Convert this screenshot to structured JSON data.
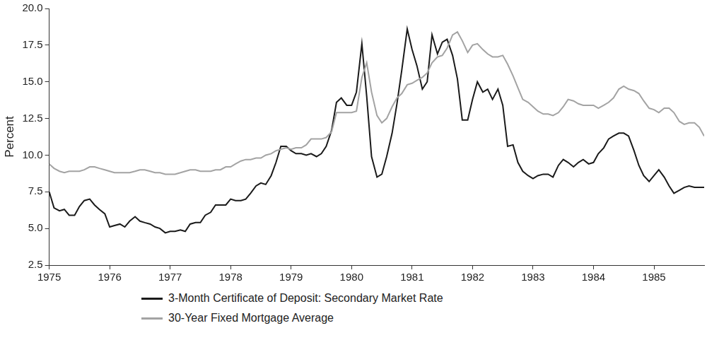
{
  "chart_data": {
    "type": "line",
    "y_label": "Percent",
    "x": [
      1975.0,
      1975.08,
      1975.17,
      1975.25,
      1975.33,
      1975.42,
      1975.5,
      1975.58,
      1975.67,
      1975.75,
      1975.83,
      1975.92,
      1976.0,
      1976.08,
      1976.17,
      1976.25,
      1976.33,
      1976.42,
      1976.5,
      1976.58,
      1976.67,
      1976.75,
      1976.83,
      1976.92,
      1977.0,
      1977.08,
      1977.17,
      1977.25,
      1977.33,
      1977.42,
      1977.5,
      1977.58,
      1977.67,
      1977.75,
      1977.83,
      1977.92,
      1978.0,
      1978.08,
      1978.17,
      1978.25,
      1978.33,
      1978.42,
      1978.5,
      1978.58,
      1978.67,
      1978.75,
      1978.83,
      1978.92,
      1979.0,
      1979.08,
      1979.17,
      1979.25,
      1979.33,
      1979.42,
      1979.5,
      1979.58,
      1979.67,
      1979.75,
      1979.83,
      1979.92,
      1980.0,
      1980.08,
      1980.17,
      1980.25,
      1980.33,
      1980.42,
      1980.5,
      1980.58,
      1980.67,
      1980.75,
      1980.83,
      1980.92,
      1981.0,
      1981.08,
      1981.17,
      1981.25,
      1981.33,
      1981.42,
      1981.5,
      1981.58,
      1981.67,
      1981.75,
      1981.83,
      1981.92,
      1982.0,
      1982.08,
      1982.17,
      1982.25,
      1982.33,
      1982.42,
      1982.5,
      1982.58,
      1982.67,
      1982.75,
      1982.83,
      1982.92,
      1983.0,
      1983.08,
      1983.17,
      1983.25,
      1983.33,
      1983.42,
      1983.5,
      1983.58,
      1983.67,
      1983.75,
      1983.83,
      1983.92,
      1984.0,
      1984.08,
      1984.17,
      1984.25,
      1984.33,
      1984.42,
      1984.5,
      1984.58,
      1984.67,
      1984.75,
      1984.83,
      1984.92,
      1985.0,
      1985.08,
      1985.17,
      1985.25,
      1985.33,
      1985.42,
      1985.5,
      1985.58,
      1985.67,
      1985.75,
      1985.83
    ],
    "series": [
      {
        "name": "3-Month Certificate of Deposit: Secondary Market Rate",
        "color": "#1a1a1a",
        "values": [
          7.5,
          6.4,
          6.2,
          6.3,
          5.9,
          5.9,
          6.5,
          6.9,
          7.0,
          6.6,
          6.3,
          6.0,
          5.1,
          5.2,
          5.3,
          5.1,
          5.5,
          5.8,
          5.5,
          5.4,
          5.3,
          5.1,
          5.0,
          4.7,
          4.8,
          4.8,
          4.9,
          4.8,
          5.3,
          5.4,
          5.4,
          5.9,
          6.1,
          6.6,
          6.6,
          6.6,
          7.0,
          6.9,
          6.9,
          7.0,
          7.4,
          7.9,
          8.1,
          8.0,
          8.6,
          9.5,
          10.6,
          10.6,
          10.3,
          10.1,
          10.1,
          10.0,
          10.1,
          9.9,
          10.1,
          10.6,
          11.7,
          13.6,
          13.9,
          13.4,
          13.4,
          14.3,
          17.6,
          14.0,
          9.9,
          8.5,
          8.7,
          9.9,
          11.5,
          13.5,
          15.8,
          18.6,
          17.2,
          16.1,
          14.5,
          15.0,
          18.2,
          16.9,
          17.7,
          17.9,
          16.8,
          15.2,
          12.4,
          12.4,
          13.8,
          15.0,
          14.3,
          14.5,
          13.8,
          14.5,
          13.4,
          10.6,
          10.7,
          9.5,
          8.9,
          8.6,
          8.4,
          8.6,
          8.7,
          8.7,
          8.5,
          9.3,
          9.7,
          9.5,
          9.2,
          9.5,
          9.7,
          9.4,
          9.5,
          10.1,
          10.5,
          11.1,
          11.3,
          11.5,
          11.5,
          11.3,
          10.3,
          9.3,
          8.6,
          8.2,
          8.6,
          9.0,
          8.5,
          7.9,
          7.4,
          7.6,
          7.8,
          7.9,
          7.8,
          7.8,
          7.8
        ]
      },
      {
        "name": "30-Year Fixed Mortgage Average",
        "color": "#a3a3a3",
        "values": [
          9.4,
          9.1,
          8.9,
          8.8,
          8.9,
          8.9,
          8.9,
          9.0,
          9.2,
          9.2,
          9.1,
          9.0,
          8.9,
          8.8,
          8.8,
          8.8,
          8.8,
          8.9,
          9.0,
          9.0,
          8.9,
          8.8,
          8.8,
          8.7,
          8.7,
          8.7,
          8.8,
          8.9,
          9.0,
          9.0,
          8.9,
          8.9,
          8.9,
          9.0,
          9.0,
          9.2,
          9.2,
          9.4,
          9.6,
          9.7,
          9.7,
          9.8,
          9.8,
          10.0,
          10.1,
          10.3,
          10.4,
          10.5,
          10.4,
          10.5,
          10.5,
          10.7,
          11.1,
          11.1,
          11.1,
          11.2,
          11.6,
          12.9,
          12.9,
          12.9,
          12.9,
          13.0,
          15.3,
          16.3,
          14.3,
          12.7,
          12.2,
          12.5,
          13.3,
          13.9,
          14.2,
          14.8,
          14.9,
          15.1,
          15.3,
          15.6,
          16.3,
          16.7,
          16.8,
          17.3,
          18.2,
          18.4,
          17.8,
          17.0,
          17.5,
          17.6,
          17.2,
          16.9,
          16.7,
          16.7,
          16.8,
          16.2,
          15.4,
          14.6,
          13.8,
          13.6,
          13.3,
          13.0,
          12.8,
          12.8,
          12.7,
          12.9,
          13.3,
          13.8,
          13.7,
          13.5,
          13.4,
          13.4,
          13.4,
          13.2,
          13.4,
          13.6,
          13.9,
          14.5,
          14.7,
          14.5,
          14.4,
          14.2,
          13.7,
          13.2,
          13.1,
          12.9,
          13.2,
          13.2,
          12.9,
          12.3,
          12.1,
          12.2,
          12.2,
          11.9,
          11.3
        ]
      }
    ],
    "xlim": [
      1975,
      1985.83
    ],
    "xticks": [
      1975,
      1976,
      1977,
      1978,
      1979,
      1980,
      1981,
      1982,
      1983,
      1984,
      1985
    ],
    "ylim": [
      2.5,
      20
    ],
    "yticks": [
      2.5,
      {
        "value": 5,
        "label": "5.0"
      },
      7.5,
      {
        "value": 10,
        "label": "10.0"
      },
      12.5,
      {
        "value": 15,
        "label": "15.0"
      },
      17.5,
      {
        "value": 20,
        "label": "20.0"
      }
    ],
    "grid": false,
    "legend": "bottom"
  }
}
